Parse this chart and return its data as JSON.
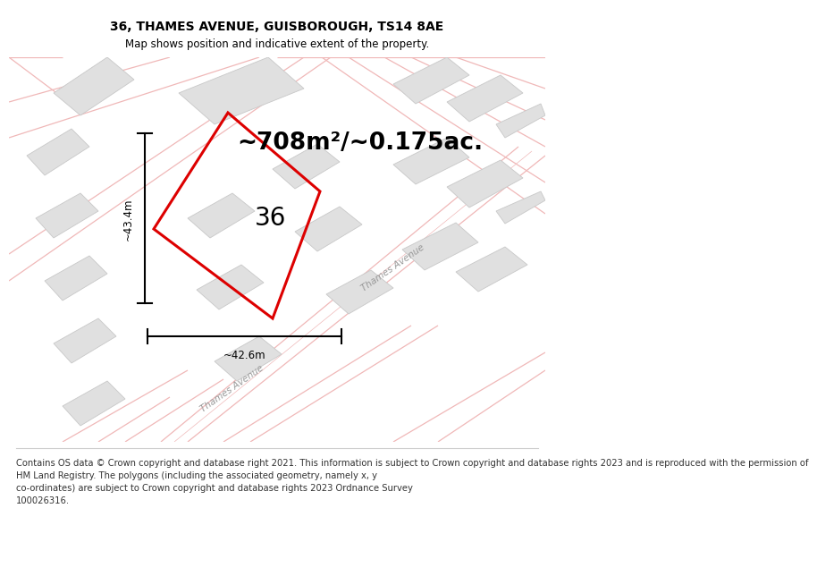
{
  "title": "36, THAMES AVENUE, GUISBOROUGH, TS14 8AE",
  "subtitle": "Map shows position and indicative extent of the property.",
  "area_text": "~708m²/~0.175ac.",
  "label_36": "36",
  "dim_width": "~42.6m",
  "dim_height": "~43.4m",
  "footer_text": "Contains OS data © Crown copyright and database right 2021. This information is subject to Crown copyright and database rights 2023 and is reproduced with the permission of\nHM Land Registry. The polygons (including the associated geometry, namely x, y\nco-ordinates) are subject to Crown copyright and database rights 2023 Ordnance Survey\n100026316.",
  "bg_color": "#ffffff",
  "map_bg": "#f8f7f7",
  "road_line_color": "#f5c5c5",
  "road_outline_color": "#e8b8b8",
  "building_fill": "#e0e0e0",
  "building_edge": "#c8c8c8",
  "red_poly_color": "#dd0000",
  "title_fontsize": 10,
  "subtitle_fontsize": 8.5,
  "area_fontsize": 19,
  "footer_fontsize": 7.2,
  "map_border_color": "#cccccc"
}
